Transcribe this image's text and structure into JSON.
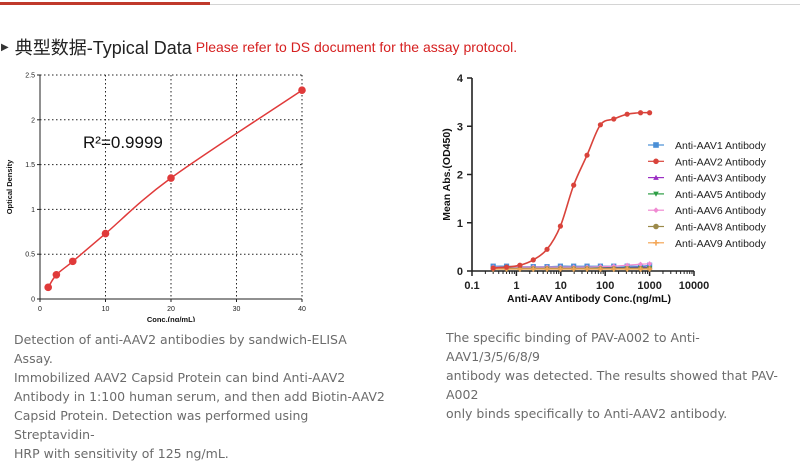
{
  "header": {
    "title": "典型数据-Typical Data",
    "note": "Please refer to DS document for the assay protocol."
  },
  "colors": {
    "accent_red": "#d62020",
    "curve_red": "#e03a3a",
    "anti_aav1": "#4a8fd6",
    "anti_aav2": "#d9433b",
    "anti_aav3": "#9b2fc4",
    "anti_aav5": "#2e9e45",
    "anti_aav6": "#f08ad2",
    "anti_aav8": "#9c8a4a",
    "anti_aav9": "#f3a657"
  },
  "chart_data": [
    {
      "type": "scatter",
      "title": "",
      "xlabel": "Conc.(ng/mL)",
      "ylabel": "Optical Density",
      "xlim": [
        0,
        40
      ],
      "ylim": [
        0,
        2.5
      ],
      "xticks": [
        "0",
        "10",
        "20",
        "30",
        "40"
      ],
      "yticks": [
        "0",
        "0.5",
        "1",
        "1.5",
        "2",
        "2.5"
      ],
      "grid": "dotted",
      "annotation": "R²=0.9999",
      "series": [
        {
          "name": "Anti-AAV2",
          "x": [
            1.25,
            2.5,
            5,
            10,
            20,
            40
          ],
          "y": [
            0.13,
            0.27,
            0.42,
            0.73,
            1.35,
            2.33
          ]
        }
      ],
      "fit": "smooth curve through points"
    },
    {
      "type": "line",
      "xscale": "log",
      "xlabel": "Anti-AAV Antibody  Conc.(ng/mL)",
      "ylabel": "Mean Abs.(OD450)",
      "xlim": [
        0.1,
        10000
      ],
      "ylim": [
        0,
        4
      ],
      "xticks": [
        "0.1",
        "1",
        "10",
        "100",
        "1000",
        "10000"
      ],
      "yticks": [
        "0",
        "1",
        "2",
        "3",
        "4"
      ],
      "legend_position": "right",
      "series": [
        {
          "name": "Anti-AAV1 Antibody",
          "marker": "square",
          "x": [
            0.3,
            0.6,
            1.2,
            2.4,
            4.9,
            9.8,
            19.5,
            39,
            78,
            156,
            312,
            625,
            1000
          ],
          "y": [
            0.1,
            0.1,
            0.09,
            0.09,
            0.09,
            0.1,
            0.1,
            0.1,
            0.1,
            0.1,
            0.1,
            0.1,
            0.12
          ]
        },
        {
          "name": "Anti-AAV2 Antibody",
          "marker": "circle",
          "x": [
            0.3,
            0.6,
            1.2,
            2.4,
            4.9,
            9.8,
            19.5,
            39,
            78,
            156,
            312,
            625,
            1000
          ],
          "y": [
            0.06,
            0.08,
            0.12,
            0.23,
            0.45,
            0.93,
            1.78,
            2.4,
            3.03,
            3.15,
            3.25,
            3.28,
            3.28
          ]
        },
        {
          "name": "Anti-AAV3 Antibody",
          "marker": "triangle-up",
          "x": [
            0.3,
            0.6,
            1.2,
            2.4,
            4.9,
            9.8,
            19.5,
            39,
            78,
            156,
            312,
            625,
            1000
          ],
          "y": [
            0.07,
            0.07,
            0.07,
            0.07,
            0.07,
            0.07,
            0.07,
            0.07,
            0.07,
            0.07,
            0.07,
            0.08,
            0.08
          ]
        },
        {
          "name": "Anti-AAV5 Antibody",
          "marker": "triangle-down",
          "x": [
            0.3,
            0.6,
            1.2,
            2.4,
            4.9,
            9.8,
            19.5,
            39,
            78,
            156,
            312,
            625,
            1000
          ],
          "y": [
            0.06,
            0.06,
            0.06,
            0.06,
            0.06,
            0.06,
            0.06,
            0.06,
            0.06,
            0.06,
            0.06,
            0.06,
            0.06
          ]
        },
        {
          "name": "Anti-AAV6 Antibody",
          "marker": "diamond",
          "x": [
            0.3,
            0.6,
            1.2,
            2.4,
            4.9,
            9.8,
            19.5,
            39,
            78,
            156,
            312,
            625,
            1000
          ],
          "y": [
            0.08,
            0.08,
            0.08,
            0.08,
            0.08,
            0.08,
            0.08,
            0.08,
            0.09,
            0.1,
            0.12,
            0.14,
            0.15
          ]
        },
        {
          "name": "Anti-AAV8 Antibody",
          "marker": "circle",
          "x": [
            0.3,
            0.6,
            1.2,
            2.4,
            4.9,
            9.8,
            19.5,
            39,
            78,
            156,
            312,
            625,
            1000
          ],
          "y": [
            0.05,
            0.05,
            0.05,
            0.05,
            0.05,
            0.05,
            0.05,
            0.05,
            0.05,
            0.05,
            0.05,
            0.05,
            0.05
          ]
        },
        {
          "name": "Anti-AAV9 Antibody",
          "marker": "cross",
          "x": [
            0.3,
            0.6,
            1.2,
            2.4,
            4.9,
            9.8,
            19.5,
            39,
            78,
            156,
            312,
            625,
            1000
          ],
          "y": [
            0.04,
            0.04,
            0.04,
            0.04,
            0.04,
            0.04,
            0.04,
            0.04,
            0.04,
            0.04,
            0.04,
            0.04,
            0.04
          ]
        }
      ]
    }
  ],
  "captions": {
    "left_lines": [
      "Detection of anti-AAV2 antibodies by sandwich-ELISA Assay.",
      "Immobilized AAV2 Capsid Protein can bind Anti-AAV2",
      "Antibody in 1:100 human serum, and then add Biotin-AAV2",
      "Capsid Protein. Detection was performed using Streptavidin-",
      "HRP with sensitivity of 125 ng/mL."
    ],
    "right_lines": [
      "The specific binding of PAV-A002 to Anti-AAV1/3/5/6/8/9",
      "antibody was detected. The results showed that PAV-A002",
      "only binds specifically to Anti-AAV2 antibody."
    ]
  }
}
